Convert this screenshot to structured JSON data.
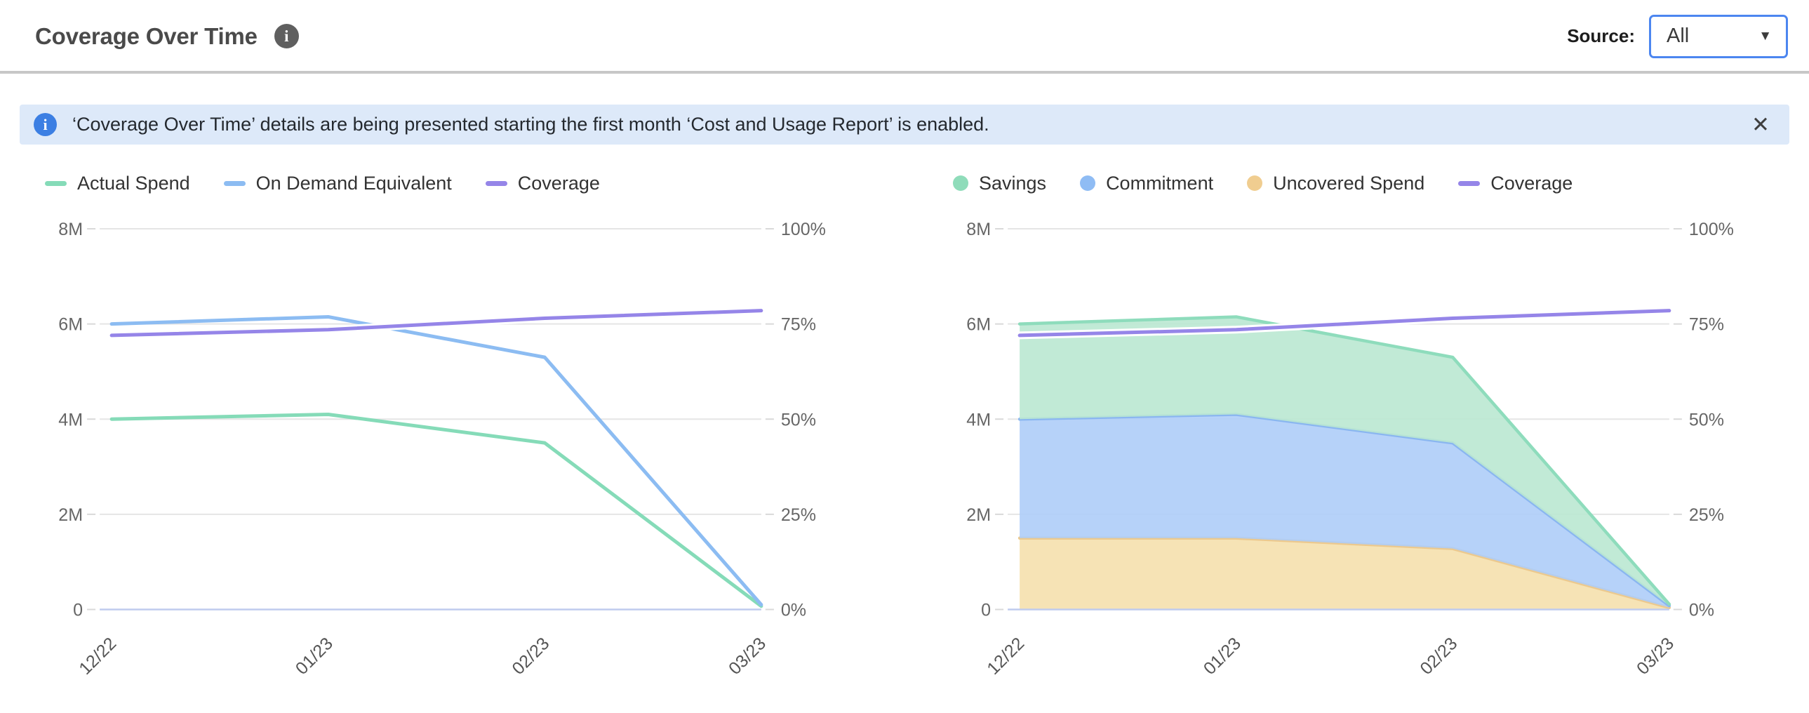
{
  "header": {
    "title": "Coverage Over Time",
    "source_label": "Source:",
    "source_value": "All"
  },
  "icons": {
    "header_info": "i",
    "banner_info": "i",
    "close": "✕",
    "dropdown_arrow": "▼"
  },
  "banner": {
    "text": "‘Coverage Over Time’ details are being presented starting the first month ‘Cost and Usage Report’ is enabled."
  },
  "colors": {
    "accent_blue": "#4c86f0",
    "banner_bg": "#dde9f9",
    "banner_icon_bg": "#3c7fe3",
    "grid": "#e5e5e5",
    "tick": "#d9d9d9",
    "baseline": "#bfcbee",
    "axis_text": "#666666",
    "x_label_text": "#555555",
    "legend_text": "#333333"
  },
  "chart_data": [
    {
      "type": "line",
      "title": "Spend vs On Demand Equivalent with Coverage",
      "x_labels": [
        "12/22",
        "01/23",
        "02/23",
        "03/23"
      ],
      "left_axis": {
        "ticks": [
          "0",
          "2M",
          "4M",
          "6M",
          "8M"
        ],
        "range": [
          0,
          8
        ],
        "unit": "M (millions $)"
      },
      "right_axis": {
        "ticks": [
          "0%",
          "25%",
          "50%",
          "75%",
          "100%"
        ],
        "range": [
          0,
          100
        ],
        "unit": "%"
      },
      "grid": true,
      "legend_position": "top",
      "legend": [
        {
          "label": "Actual Spend",
          "marker": "dash",
          "color": "#85dbb8"
        },
        {
          "label": "On Demand Equivalent",
          "marker": "dash",
          "color": "#8cbcf2"
        },
        {
          "label": "Coverage",
          "marker": "dash",
          "color": "#9585e8"
        }
      ],
      "series": [
        {
          "name": "Actual Spend",
          "color": "#85dbb8",
          "axis": "left",
          "values": [
            4.0,
            4.1,
            3.5,
            0.07
          ]
        },
        {
          "name": "On Demand Equivalent",
          "color": "#8cbcf2",
          "axis": "left",
          "values": [
            6.0,
            6.15,
            5.3,
            0.1
          ]
        },
        {
          "name": "Coverage",
          "color": "#9585e8",
          "axis": "right",
          "halo": true,
          "values": [
            72,
            73.5,
            76.5,
            78.5
          ]
        }
      ]
    },
    {
      "type": "area-stacked",
      "title": "Savings / Commitment / Uncovered Spend with Coverage",
      "x_labels": [
        "12/22",
        "01/23",
        "02/23",
        "03/23"
      ],
      "left_axis": {
        "ticks": [
          "0",
          "2M",
          "4M",
          "6M",
          "8M"
        ],
        "range": [
          0,
          8
        ],
        "unit": "M (millions $)"
      },
      "right_axis": {
        "ticks": [
          "0%",
          "25%",
          "50%",
          "75%",
          "100%"
        ],
        "range": [
          0,
          100
        ],
        "unit": "%"
      },
      "grid": true,
      "legend_position": "top",
      "legend": [
        {
          "label": "Savings",
          "marker": "circle",
          "color": "#8fdcba"
        },
        {
          "label": "Commitment",
          "marker": "circle",
          "color": "#8fbcf4"
        },
        {
          "label": "Uncovered Spend",
          "marker": "circle",
          "color": "#f0cd90"
        },
        {
          "label": "Coverage",
          "marker": "dash",
          "color": "#9585e8"
        }
      ],
      "series": [
        {
          "name": "Uncovered Spend",
          "stack": true,
          "fill": "#f5e0ad",
          "edge": "#ecc98e",
          "axis": "left",
          "values": [
            1.5,
            1.5,
            1.28,
            0.04
          ]
        },
        {
          "name": "Commitment",
          "stack": true,
          "fill": "#aecdf8",
          "edge": "#8ab6f0",
          "axis": "left",
          "values": [
            2.5,
            2.6,
            2.22,
            0.04
          ]
        },
        {
          "name": "Savings",
          "stack": true,
          "fill": "#bae8d1",
          "edge": "#8edcbc",
          "axis": "left",
          "values": [
            2.0,
            2.05,
            1.8,
            0.03
          ]
        },
        {
          "name": "Coverage",
          "line": true,
          "color": "#9585e8",
          "axis": "right",
          "halo": true,
          "values": [
            72,
            73.5,
            76.5,
            78.5
          ]
        }
      ]
    }
  ]
}
